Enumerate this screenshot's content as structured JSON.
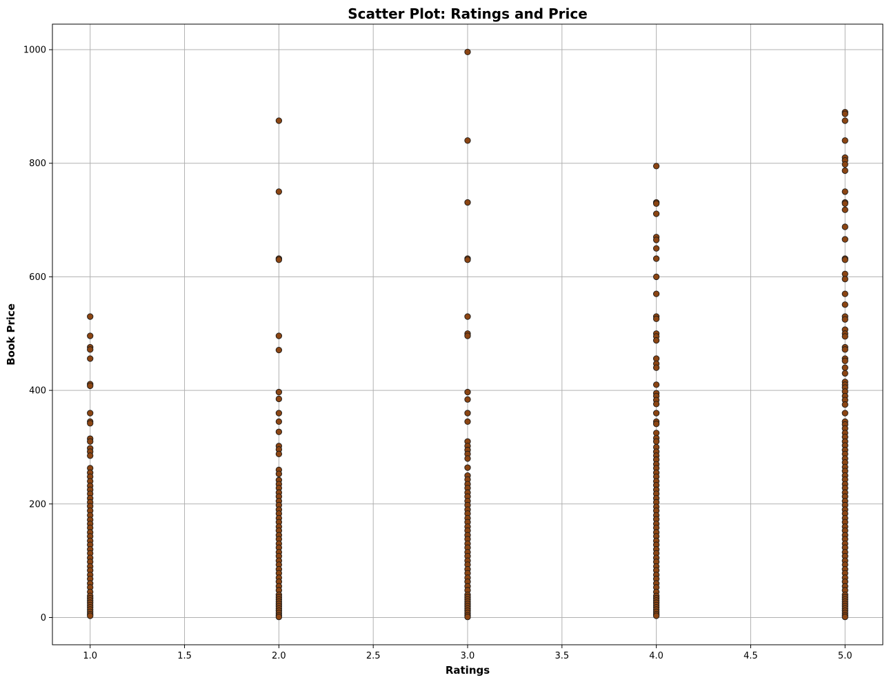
{
  "chart_data": {
    "type": "scatter",
    "title": "Scatter Plot: Ratings and Price",
    "xlabel": "Ratings",
    "ylabel": "Book Price",
    "xlim": [
      0.8,
      5.2
    ],
    "ylim": [
      -48,
      1045
    ],
    "xticks": [
      "1.0",
      "1.5",
      "2.0",
      "2.5",
      "3.0",
      "3.5",
      "4.0",
      "4.5",
      "5.0"
    ],
    "yticks": [
      "0",
      "200",
      "400",
      "600",
      "800",
      "1000"
    ],
    "grid": true,
    "marker_fill": "#8B4513",
    "marker_edge": "#1a1a1a",
    "grid_color": "#b0b0b0",
    "series": [
      {
        "x": 1,
        "y": [
          530,
          496,
          476,
          472,
          456,
          411,
          408,
          360,
          345,
          342,
          315,
          310,
          298,
          292,
          285,
          263,
          255,
          248,
          240,
          232,
          225,
          218,
          210,
          203,
          196,
          188,
          180,
          172,
          165,
          158,
          150,
          143,
          135,
          128,
          120,
          113,
          105,
          98,
          90,
          83,
          75,
          68,
          60,
          53,
          45,
          38,
          34,
          30,
          26,
          22,
          18,
          14,
          10,
          6,
          3
        ]
      },
      {
        "x": 2,
        "y": [
          875,
          750,
          632,
          630,
          496,
          471,
          397,
          385,
          360,
          345,
          327,
          302,
          296,
          288,
          260,
          253,
          242,
          235,
          228,
          220,
          213,
          205,
          198,
          190,
          183,
          175,
          168,
          160,
          153,
          145,
          138,
          130,
          123,
          115,
          108,
          100,
          93,
          85,
          78,
          70,
          63,
          55,
          48,
          40,
          36,
          32,
          28,
          24,
          20,
          16,
          12,
          8,
          4,
          1
        ]
      },
      {
        "x": 3,
        "y": [
          996,
          840,
          731,
          632,
          630,
          530,
          500,
          496,
          397,
          384,
          360,
          345,
          310,
          302,
          295,
          288,
          280,
          264,
          250,
          243,
          235,
          228,
          220,
          213,
          205,
          198,
          190,
          183,
          175,
          168,
          160,
          153,
          145,
          138,
          130,
          123,
          115,
          108,
          100,
          93,
          85,
          78,
          70,
          63,
          55,
          48,
          40,
          36,
          32,
          28,
          24,
          20,
          16,
          12,
          8,
          4,
          1
        ]
      },
      {
        "x": 4,
        "y": [
          795,
          731,
          729,
          711,
          670,
          665,
          650,
          632,
          600,
          570,
          530,
          526,
          500,
          495,
          488,
          456,
          447,
          440,
          410,
          395,
          390,
          383,
          376,
          360,
          345,
          341,
          325,
          316,
          310,
          300,
          292,
          285,
          278,
          270,
          263,
          255,
          248,
          240,
          233,
          225,
          218,
          210,
          203,
          195,
          188,
          180,
          173,
          165,
          158,
          150,
          143,
          135,
          128,
          120,
          113,
          105,
          98,
          90,
          83,
          75,
          68,
          60,
          53,
          45,
          38,
          34,
          30,
          26,
          22,
          18,
          14,
          10,
          6,
          3
        ]
      },
      {
        "x": 5,
        "y": [
          890,
          887,
          875,
          840,
          810,
          805,
          798,
          787,
          750,
          731,
          729,
          718,
          688,
          666,
          632,
          630,
          605,
          596,
          570,
          551,
          530,
          525,
          507,
          500,
          495,
          476,
          472,
          456,
          452,
          440,
          430,
          415,
          410,
          405,
          398,
          390,
          383,
          375,
          360,
          345,
          340,
          333,
          325,
          318,
          310,
          303,
          295,
          288,
          280,
          273,
          265,
          258,
          250,
          243,
          235,
          228,
          220,
          213,
          205,
          198,
          190,
          183,
          175,
          168,
          160,
          153,
          145,
          138,
          130,
          123,
          115,
          108,
          100,
          93,
          85,
          78,
          70,
          63,
          55,
          48,
          40,
          36,
          32,
          28,
          24,
          20,
          16,
          12,
          8,
          4,
          1
        ]
      }
    ]
  }
}
